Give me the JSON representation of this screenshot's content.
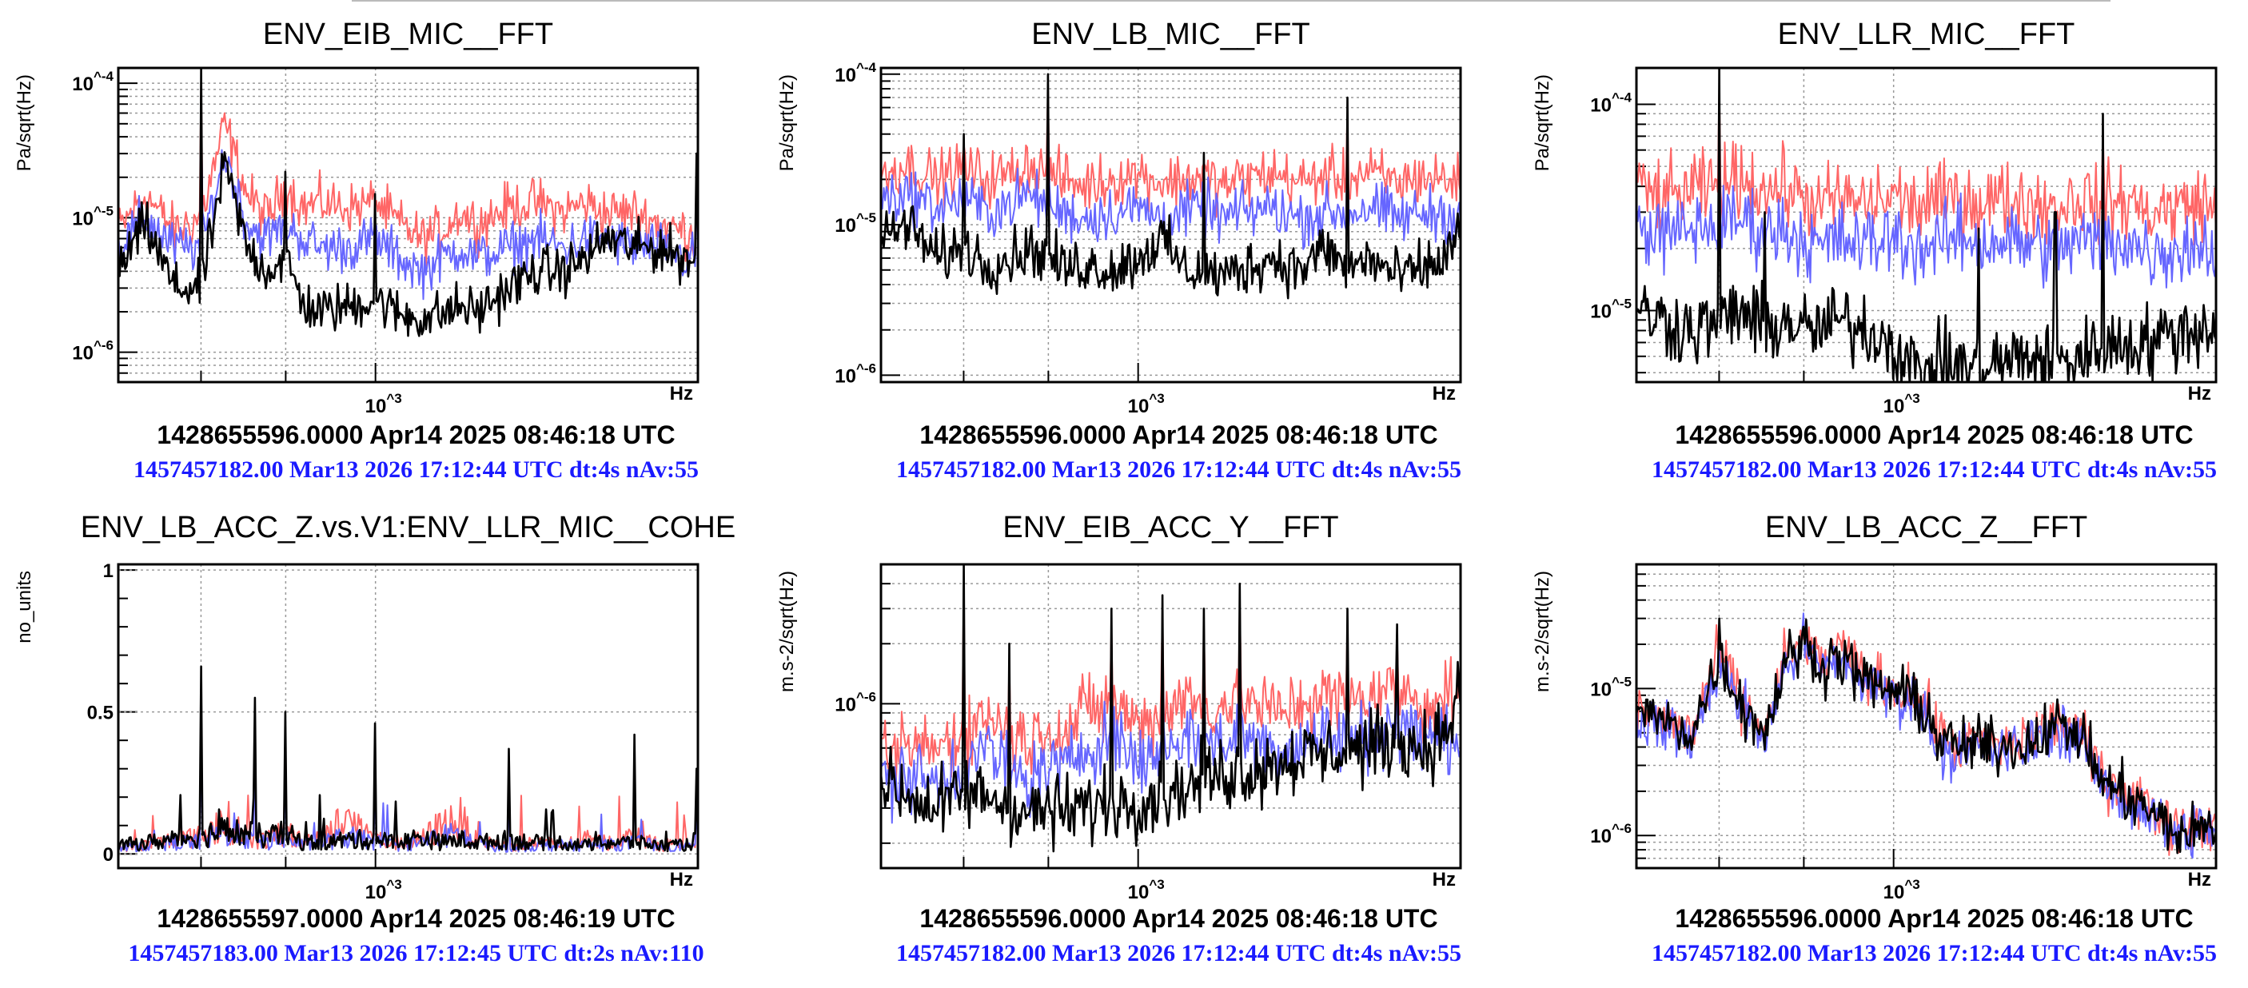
{
  "colors": {
    "reference_1": "#ff6666",
    "reference_2": "#6666ff",
    "current": "#000000",
    "timestamp_text": "#1a1aff"
  },
  "chart_data": [
    {
      "type": "line",
      "title": "ENV_EIB_MIC__FFT",
      "ylabel": "Pa/sqrt(Hz)",
      "xunit": "Hz",
      "xscale": "log",
      "yscale": "log",
      "xlim": [
        360,
        3600
      ],
      "ylim": [
        6e-07,
        0.00013
      ],
      "x_tick_label": "10^3",
      "x_gridlines": [
        500,
        700,
        1000
      ],
      "y_ticks": [
        {
          "value": 0.0001,
          "label": "10^-4"
        },
        {
          "value": 1e-05,
          "label": "10^-5"
        },
        {
          "value": 1e-06,
          "label": "10^-6"
        }
      ],
      "grid": true,
      "timestamp": "1428655596.0000 Apr14 2025 08:46:18 UTC",
      "info": "1457457182.00 Mar13 2026 17:12:44 UTC dt:4s nAv:55",
      "x": [
        360,
        400,
        450,
        500,
        550,
        600,
        650,
        700,
        750,
        800,
        900,
        1000,
        1100,
        1200,
        1300,
        1400,
        1500,
        1700,
        1900,
        2100,
        2300,
        2500,
        2800,
        3100,
        3400,
        3600
      ],
      "series": [
        {
          "color": "#ff6666",
          "values": [
            8e-06,
            1.5e-05,
            8e-06,
            1e-05,
            5e-05,
            1.5e-05,
            1e-05,
            1.7e-05,
            1.2e-05,
            1.3e-05,
            1.2e-05,
            1.3e-05,
            9e-06,
            7e-06,
            8e-06,
            1.1e-05,
            9e-06,
            1.2e-05,
            1.3e-05,
            1.1e-05,
            1.3e-05,
            1.1e-05,
            1.1e-05,
            9e-06,
            8e-06,
            7e-06
          ]
        },
        {
          "color": "#6666ff",
          "values": [
            6e-06,
            1e-05,
            6e-06,
            6e-06,
            3e-05,
            9e-06,
            7e-06,
            9e-06,
            7e-06,
            6e-06,
            6e-06,
            7e-06,
            5e-06,
            4e-06,
            5e-06,
            6e-06,
            5e-06,
            6e-06,
            7e-06,
            6e-06,
            7e-06,
            7e-06,
            6e-06,
            6e-06,
            5e-06,
            5e-06
          ]
        },
        {
          "color": "#000000",
          "values": [
            4e-06,
            9e-06,
            3e-06,
            3e-06,
            2.5e-05,
            6e-06,
            4e-06,
            5e-06,
            2.3e-06,
            2e-06,
            2.2e-06,
            2.5e-06,
            1.9e-06,
            1.8e-06,
            1.9e-06,
            2.2e-06,
            2e-06,
            3e-06,
            4e-06,
            4e-06,
            5e-06,
            7e-06,
            6e-06,
            6e-06,
            5e-06,
            5e-06
          ]
        }
      ],
      "lines": [
        {
          "x": 500,
          "value": 0.00013
        },
        {
          "x": 700,
          "value": 2.2e-05
        },
        {
          "x": 1000,
          "value": 1.5e-05
        },
        {
          "x": 3580,
          "value": 3e-05
        }
      ]
    },
    {
      "type": "line",
      "title": "ENV_LB_MIC__FFT",
      "ylabel": "Pa/sqrt(Hz)",
      "xunit": "Hz",
      "xscale": "log",
      "yscale": "log",
      "xlim": [
        360,
        3600
      ],
      "ylim": [
        9e-07,
        0.00011
      ],
      "x_tick_label": "10^3",
      "x_gridlines": [
        500,
        700,
        1000
      ],
      "y_ticks": [
        {
          "value": 0.0001,
          "label": "10^-4"
        },
        {
          "value": 1e-05,
          "label": "10^-5"
        },
        {
          "value": 1e-06,
          "label": "10^-6"
        }
      ],
      "grid": true,
      "timestamp": "1428655596.0000 Apr14 2025 08:46:18 UTC",
      "info": "1457457182.00 Mar13 2026 17:12:44 UTC dt:4s nAv:55",
      "x": [
        360,
        400,
        450,
        500,
        550,
        600,
        650,
        700,
        750,
        800,
        900,
        1000,
        1100,
        1200,
        1300,
        1400,
        1500,
        1700,
        1900,
        2100,
        2300,
        2500,
        2800,
        3100,
        3400,
        3600
      ],
      "series": [
        {
          "color": "#ff6666",
          "values": [
            2.2e-05,
            2.5e-05,
            2e-05,
            2.4e-05,
            2e-05,
            2.2e-05,
            2.6e-05,
            2.1e-05,
            2e-05,
            1.8e-05,
            2e-05,
            2.2e-05,
            1.9e-05,
            2e-05,
            2.1e-05,
            1.8e-05,
            2e-05,
            2.2e-05,
            1.9e-05,
            2.1e-05,
            2e-05,
            2.2e-05,
            1.9e-05,
            2.1e-05,
            2e-05,
            1.9e-05
          ]
        },
        {
          "color": "#6666ff",
          "values": [
            1.5e-05,
            1.6e-05,
            1.3e-05,
            1.5e-05,
            1.2e-05,
            1.4e-05,
            1.6e-05,
            1.3e-05,
            1.2e-05,
            1.1e-05,
            1.2e-05,
            1.3e-05,
            1.1e-05,
            1.2e-05,
            1.3e-05,
            1.1e-05,
            1.2e-05,
            1.3e-05,
            1.1e-05,
            1.2e-05,
            1.2e-05,
            1.3e-05,
            1.1e-05,
            1.2e-05,
            1.2e-05,
            1.1e-05
          ]
        },
        {
          "color": "#000000",
          "values": [
            8e-06,
            1e-05,
            6e-06,
            7e-06,
            5.5e-06,
            6e-06,
            7e-06,
            6e-06,
            5e-06,
            5.5e-06,
            5e-06,
            6e-06,
            8e-06,
            5e-06,
            5e-06,
            4.5e-06,
            5e-06,
            6e-06,
            5e-06,
            7e-06,
            5e-06,
            6e-06,
            4.5e-06,
            5e-06,
            6e-06,
            1e-05
          ]
        }
      ],
      "lines": [
        {
          "x": 500,
          "value": 4e-05
        },
        {
          "x": 700,
          "value": 0.0001
        },
        {
          "x": 1300,
          "value": 3e-05
        },
        {
          "x": 2300,
          "value": 7e-05
        }
      ]
    },
    {
      "type": "line",
      "title": "ENV_LLR_MIC__FFT",
      "ylabel": "Pa/sqrt(Hz)",
      "xunit": "Hz",
      "xscale": "log",
      "yscale": "log",
      "xlim": [
        360,
        3600
      ],
      "ylim": [
        4.5e-06,
        0.00015
      ],
      "x_tick_label": "10^3",
      "x_gridlines": [
        500,
        700,
        1000
      ],
      "y_ticks": [
        {
          "value": 0.0001,
          "label": "10^-4"
        },
        {
          "value": 1e-05,
          "label": "10^-5"
        }
      ],
      "grid": true,
      "timestamp": "1428655596.0000 Apr14 2025 08:46:18 UTC",
      "info": "1457457182.00 Mar13 2026 17:12:44 UTC dt:4s nAv:55",
      "x": [
        360,
        400,
        450,
        500,
        550,
        600,
        650,
        700,
        750,
        800,
        900,
        1000,
        1100,
        1200,
        1300,
        1400,
        1500,
        1700,
        1900,
        2100,
        2300,
        2500,
        2800,
        3100,
        3400,
        3600
      ],
      "series": [
        {
          "color": "#ff6666",
          "values": [
            4e-05,
            3.5e-05,
            3.8e-05,
            4e-05,
            4.5e-05,
            3.8e-05,
            4e-05,
            3.5e-05,
            3.2e-05,
            3.5e-05,
            3.3e-05,
            3.6e-05,
            3.2e-05,
            3.4e-05,
            3.6e-05,
            3.3e-05,
            3.5e-05,
            3.4e-05,
            3.2e-05,
            3.5e-05,
            3.3e-05,
            3.4e-05,
            3e-05,
            3.2e-05,
            3.4e-05,
            3e-05
          ]
        },
        {
          "color": "#6666ff",
          "values": [
            2.6e-05,
            2.3e-05,
            2.5e-05,
            2.6e-05,
            2.8e-05,
            2.4e-05,
            2.5e-05,
            2.2e-05,
            2e-05,
            2.2e-05,
            2.1e-05,
            2.3e-05,
            2e-05,
            2.1e-05,
            2.3e-05,
            2.1e-05,
            2.2e-05,
            2.1e-05,
            2e-05,
            2.2e-05,
            2.1e-05,
            2.2e-05,
            1.9e-05,
            2e-05,
            2.1e-05,
            1.9e-05
          ]
        },
        {
          "color": "#000000",
          "values": [
            1e-05,
            9e-06,
            8e-06,
            9e-06,
            1e-05,
            8e-06,
            9e-06,
            8e-06,
            8e-06,
            9e-06,
            8e-06,
            7e-06,
            5e-06,
            5.5e-06,
            5.5e-06,
            5e-06,
            5.5e-06,
            6e-06,
            5.5e-06,
            6e-06,
            6.5e-06,
            7e-06,
            7e-06,
            8e-06,
            8e-06,
            9e-06
          ]
        }
      ],
      "lines": [
        {
          "x": 500,
          "value": 0.00015
        },
        {
          "x": 600,
          "value": 3e-05
        },
        {
          "x": 1400,
          "value": 2.5e-05
        },
        {
          "x": 1900,
          "value": 3e-05
        },
        {
          "x": 2300,
          "value": 9e-05
        }
      ]
    },
    {
      "type": "line",
      "title": "ENV_LB_ACC_Z.vs.V1:ENV_LLR_MIC__COHE",
      "ylabel": "no_units",
      "xunit": "Hz",
      "xscale": "log",
      "yscale": "linear",
      "xlim": [
        360,
        3600
      ],
      "ylim": [
        -0.05,
        1.02
      ],
      "x_tick_label": "10^3",
      "x_gridlines": [
        500,
        700,
        1000
      ],
      "y_ticks": [
        {
          "value": 1,
          "label": "1"
        },
        {
          "value": 0.5,
          "label": "0.5"
        },
        {
          "value": 0,
          "label": "0"
        }
      ],
      "grid": true,
      "timestamp": "1428655597.0000 Apr14 2025 08:46:19 UTC",
      "info": "1457457183.00 Mar13 2026 17:12:45 UTC dt:2s nAv:110",
      "x": [
        360,
        400,
        450,
        500,
        550,
        600,
        650,
        700,
        750,
        800,
        900,
        1000,
        1100,
        1200,
        1300,
        1400,
        1500,
        1700,
        1900,
        2100,
        2300,
        2500,
        2800,
        3100,
        3400,
        3600
      ],
      "series": [
        {
          "color": "#ff6666",
          "values": [
            0.02,
            0.03,
            0.05,
            0.06,
            0.12,
            0.06,
            0.05,
            0.08,
            0.04,
            0.06,
            0.12,
            0.05,
            0.04,
            0.05,
            0.1,
            0.12,
            0.04,
            0.03,
            0.04,
            0.03,
            0.05,
            0.04,
            0.06,
            0.03,
            0.04,
            0.03
          ]
        },
        {
          "color": "#6666ff",
          "values": [
            0.02,
            0.03,
            0.04,
            0.04,
            0.08,
            0.05,
            0.04,
            0.06,
            0.03,
            0.04,
            0.06,
            0.04,
            0.03,
            0.04,
            0.06,
            0.07,
            0.03,
            0.02,
            0.03,
            0.03,
            0.03,
            0.03,
            0.04,
            0.03,
            0.03,
            0.02
          ]
        },
        {
          "color": "#000000",
          "values": [
            0.03,
            0.04,
            0.05,
            0.07,
            0.08,
            0.07,
            0.06,
            0.07,
            0.04,
            0.04,
            0.05,
            0.05,
            0.04,
            0.06,
            0.04,
            0.05,
            0.04,
            0.05,
            0.04,
            0.04,
            0.03,
            0.04,
            0.04,
            0.03,
            0.03,
            0.05
          ]
        }
      ],
      "lines": [
        {
          "x": 500,
          "value": 0.66
        },
        {
          "x": 620,
          "value": 0.55
        },
        {
          "x": 700,
          "value": 0.5
        },
        {
          "x": 1000,
          "value": 0.46
        },
        {
          "x": 1700,
          "value": 0.37
        },
        {
          "x": 2800,
          "value": 0.42
        },
        {
          "x": 3580,
          "value": 0.3
        }
      ]
    },
    {
      "type": "line",
      "title": "ENV_EIB_ACC_Y__FFT",
      "ylabel": "m.s-2/sqrt(Hz)",
      "xunit": "Hz",
      "xscale": "log",
      "yscale": "log",
      "xlim": [
        360,
        3600
      ],
      "ylim": [
        1.5e-07,
        5e-06
      ],
      "x_tick_label": "10^3",
      "x_gridlines": [
        500,
        700,
        1000
      ],
      "y_ticks": [
        {
          "value": 1e-06,
          "label": "10^-6"
        }
      ],
      "grid": true,
      "timestamp": "1428655596.0000 Apr14 2025 08:46:18 UTC",
      "info": "1457457182.00 Mar13 2026 17:12:44 UTC dt:4s nAv:55",
      "x": [
        360,
        400,
        450,
        500,
        550,
        600,
        650,
        700,
        750,
        800,
        900,
        1000,
        1100,
        1200,
        1300,
        1400,
        1500,
        1700,
        1900,
        2100,
        2300,
        2500,
        2800,
        3100,
        3400,
        3600
      ],
      "series": [
        {
          "color": "#ff6666",
          "values": [
            5e-07,
            6e-07,
            6e-07,
            7e-07,
            9e-07,
            7e-07,
            6.5e-07,
            8e-07,
            7e-07,
            9e-07,
            1e-06,
            8e-07,
            9e-07,
            1.1e-06,
            9e-07,
            1e-06,
            1.1e-06,
            9e-07,
            1e-06,
            1.1e-06,
            1e-06,
            1.1e-06,
            1.2e-06,
            1e-06,
            1.1e-06,
            1.2e-06
          ]
        },
        {
          "color": "#6666ff",
          "values": [
            4e-07,
            4.5e-07,
            4e-07,
            5e-07,
            6e-07,
            4.5e-07,
            4e-07,
            5e-07,
            4.5e-07,
            6e-07,
            7e-07,
            5e-07,
            6e-07,
            7e-07,
            6e-07,
            6.5e-07,
            7e-07,
            6e-07,
            6.5e-07,
            7e-07,
            6.5e-07,
            7e-07,
            8e-07,
            6.5e-07,
            7e-07,
            7e-07
          ]
        },
        {
          "color": "#000000",
          "values": [
            4e-07,
            3.5e-07,
            3e-07,
            3.5e-07,
            3.5e-07,
            3e-07,
            2.8e-07,
            3e-07,
            2.8e-07,
            3e-07,
            3.2e-07,
            3.3e-07,
            3.5e-07,
            3.8e-07,
            4e-07,
            4.5e-07,
            4.5e-07,
            5e-07,
            5.5e-07,
            5.5e-07,
            6e-07,
            6e-07,
            6.5e-07,
            6e-07,
            7e-07,
            1.2e-06
          ]
        }
      ],
      "lines": [
        {
          "x": 500,
          "value": 5e-06
        },
        {
          "x": 600,
          "value": 2e-06
        },
        {
          "x": 900,
          "value": 3e-06
        },
        {
          "x": 1100,
          "value": 3.5e-06
        },
        {
          "x": 1300,
          "value": 3e-06
        },
        {
          "x": 1500,
          "value": 4e-06
        },
        {
          "x": 2300,
          "value": 3e-06
        },
        {
          "x": 2800,
          "value": 2.5e-06
        }
      ]
    },
    {
      "type": "line",
      "title": "ENV_LB_ACC_Z__FFT",
      "ylabel": "m.s-2/sqrt(Hz)",
      "xunit": "Hz",
      "xscale": "log",
      "yscale": "log",
      "xlim": [
        360,
        3600
      ],
      "ylim": [
        6e-07,
        7e-05
      ],
      "x_tick_label": "10^3",
      "x_gridlines": [
        500,
        700,
        1000
      ],
      "y_ticks": [
        {
          "value": 1e-05,
          "label": "10^-5"
        },
        {
          "value": 1e-06,
          "label": "10^-6"
        }
      ],
      "grid": true,
      "timestamp": "1428655596.0000 Apr14 2025 08:46:18 UTC",
      "info": "1457457182.00 Mar13 2026 17:12:44 UTC dt:4s nAv:55",
      "x": [
        360,
        400,
        450,
        500,
        550,
        600,
        650,
        700,
        750,
        800,
        900,
        1000,
        1100,
        1200,
        1300,
        1400,
        1500,
        1700,
        1900,
        2100,
        2300,
        2500,
        2800,
        3100,
        3400,
        3600
      ],
      "series": [
        {
          "color": "#ff6666",
          "values": [
            7e-06,
            6e-06,
            5e-06,
            1.7e-05,
            8e-06,
            5e-06,
            1.6e-05,
            2.2e-05,
            1.5e-05,
            1.9e-05,
            1.2e-05,
            1e-05,
            9e-06,
            5e-06,
            4e-06,
            4.5e-06,
            4e-06,
            4.5e-06,
            6e-06,
            5e-06,
            2.5e-06,
            2e-06,
            1.5e-06,
            1.1e-06,
            1.2e-06,
            1.2e-06
          ]
        },
        {
          "color": "#6666ff",
          "values": [
            6.5e-06,
            5.5e-06,
            4.5e-06,
            1.5e-05,
            7e-06,
            4.5e-06,
            1.4e-05,
            2e-05,
            1.3e-05,
            1.6e-05,
            1.1e-05,
            9e-06,
            8e-06,
            4e-06,
            3.5e-06,
            4e-06,
            3.8e-06,
            4e-06,
            5.5e-06,
            4.5e-06,
            2.2e-06,
            1.8e-06,
            1.4e-06,
            1e-06,
            1.1e-06,
            1.1e-06
          ]
        },
        {
          "color": "#000000",
          "values": [
            7e-06,
            6e-06,
            5e-06,
            1.6e-05,
            7.5e-06,
            5e-06,
            1.5e-05,
            2.1e-05,
            1.4e-05,
            1.7e-05,
            1.1e-05,
            9.5e-06,
            8.5e-06,
            4.5e-06,
            4e-06,
            4.2e-06,
            4e-06,
            4.2e-06,
            5.8e-06,
            4.8e-06,
            2.3e-06,
            1.9e-06,
            1.4e-06,
            1e-06,
            1.1e-06,
            1.1e-06
          ]
        }
      ],
      "lines": [
        {
          "x": 500,
          "value": 3e-05
        }
      ]
    }
  ]
}
